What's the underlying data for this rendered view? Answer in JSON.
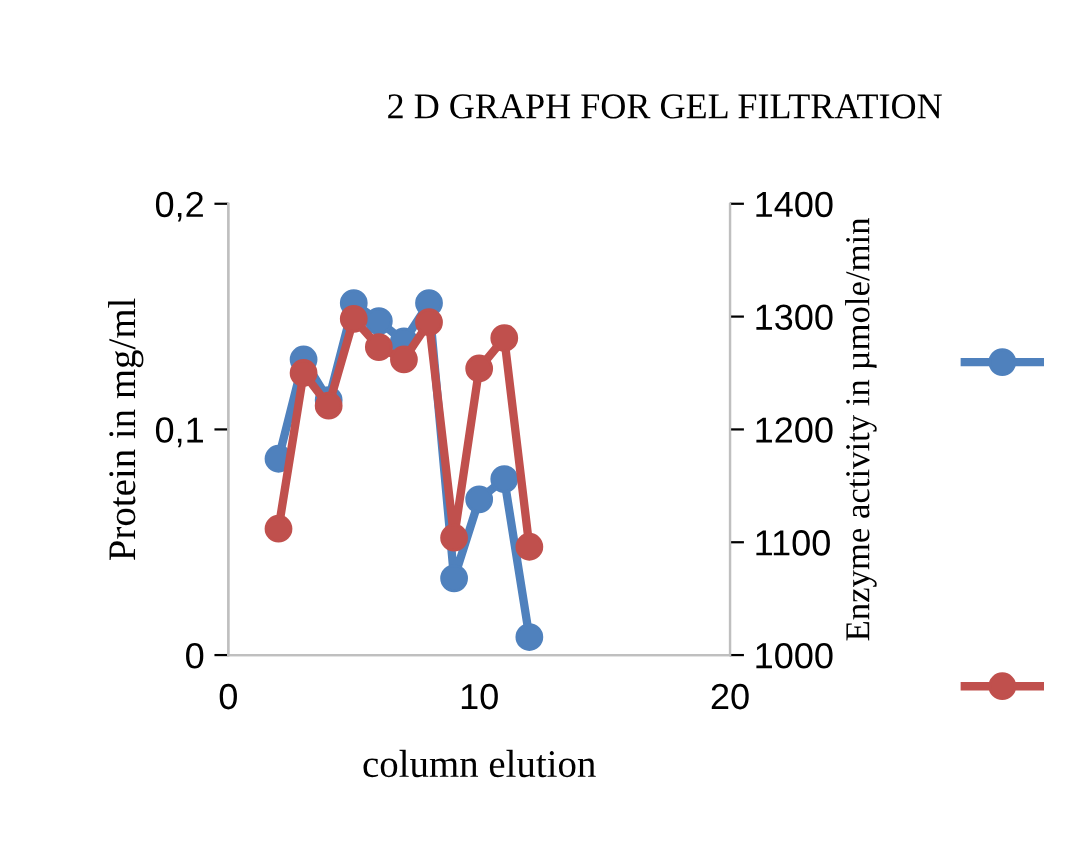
{
  "chart_data": {
    "type": "line",
    "title": "2 D GRAPH FOR GEL FILTRATION",
    "xlabel": "column elution",
    "ylabel": "Protein in mg/ml",
    "y2label": "Enzyme activity in µmole/min",
    "x": [
      2,
      3,
      4,
      5,
      6,
      7,
      8,
      9,
      10,
      11,
      12
    ],
    "series": [
      {
        "color": "#4f81bd",
        "values": [
          0.087,
          0.131,
          0.113,
          0.156,
          0.148,
          0.139,
          0.156,
          0.034,
          0.069,
          0.078,
          0.008
        ]
      },
      {
        "color": "#c0504d",
        "axis": "y2",
        "values": [
          1112,
          1250,
          1221,
          1298,
          1273,
          1262,
          1295,
          1104,
          1254,
          1281,
          1096
        ]
      }
    ],
    "xlim": [
      0,
      20
    ],
    "xticks": [
      0,
      10,
      20
    ],
    "ylim": [
      0,
      0.2
    ],
    "yticks": [
      {
        "value": 0,
        "label": "0"
      },
      {
        "value": 0.1,
        "label": "0,1"
      },
      {
        "value": 0.2,
        "label": "0,2"
      }
    ],
    "y2lim": [
      1000,
      1400
    ],
    "y2ticks": [
      1000,
      1100,
      1200,
      1300,
      1400
    ],
    "marker": "circle",
    "line_style": "solid",
    "grid": false
  }
}
